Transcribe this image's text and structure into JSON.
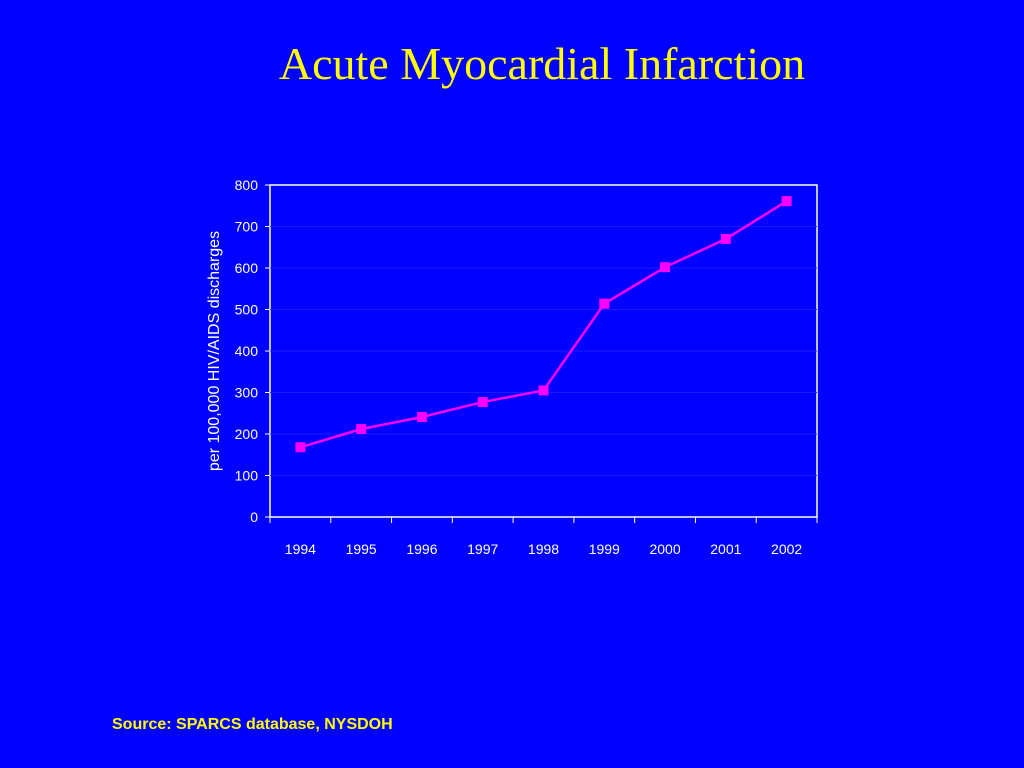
{
  "slide": {
    "title": "Acute Myocardial Infarction",
    "source": "Source: SPARCS database, NYSDOH",
    "background_color": "#0000ff",
    "title_color": "#ffff00"
  },
  "chart_data": {
    "type": "line",
    "categories": [
      "1994",
      "1995",
      "1996",
      "1997",
      "1998",
      "1999",
      "2000",
      "2001",
      "2002"
    ],
    "series": [
      {
        "values": [
          168,
          212,
          241,
          277,
          305,
          514,
          602,
          670,
          761
        ],
        "color": "#ff00ff",
        "marker": "square"
      }
    ],
    "title": "",
    "xlabel": "",
    "ylabel": "per 100,000 HIV/AIDS discharges",
    "ylim": [
      0,
      800
    ],
    "yticks": [
      0,
      100,
      200,
      300,
      400,
      500,
      600,
      700,
      800
    ],
    "grid": true,
    "legend": "none"
  }
}
